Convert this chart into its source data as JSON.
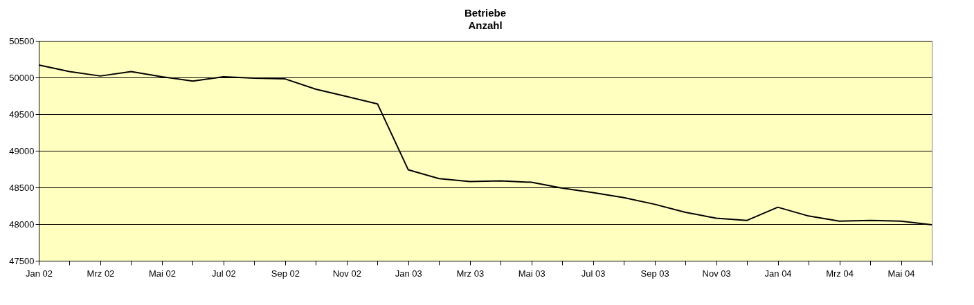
{
  "chart_data": {
    "type": "line",
    "title": "Betriebe",
    "subtitle": "Anzahl",
    "categories": [
      "Jan 02",
      null,
      "Mrz 02",
      null,
      "Mai 02",
      null,
      "Jul 02",
      null,
      "Sep 02",
      null,
      "Nov 02",
      null,
      "Jan 03",
      null,
      "Mrz 03",
      null,
      "Mai 03",
      null,
      "Jul 03",
      null,
      "Sep 03",
      null,
      "Nov 03",
      null,
      "Jan 04",
      null,
      "Mrz 04",
      null,
      "Mai 04",
      null
    ],
    "series": [
      {
        "color": "#000000",
        "values": [
          50170,
          50080,
          50020,
          50080,
          50010,
          49950,
          50010,
          49990,
          49980,
          49840,
          49740,
          49640,
          48740,
          48620,
          48580,
          48590,
          48570,
          48490,
          48430,
          48360,
          48270,
          48160,
          48080,
          48050,
          48230,
          48110,
          48040,
          48050,
          48040,
          47990
        ]
      }
    ],
    "ylim": [
      47500,
      50500
    ],
    "yticks": [
      47500,
      48000,
      48500,
      49000,
      49500,
      50000,
      50500
    ],
    "grid": "y",
    "legend": false,
    "marker": "none",
    "line_style": "solid"
  }
}
